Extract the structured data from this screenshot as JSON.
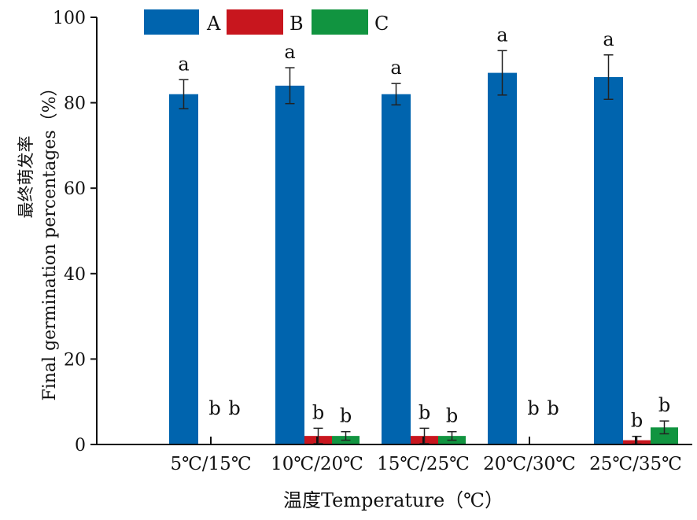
{
  "chart_data": {
    "type": "bar",
    "title": "",
    "xlabel": "温度Temperature（℃）",
    "ylabel_cn": "最终萌发率",
    "ylabel": "Final germination percentages（%）",
    "ylim": [
      0,
      100
    ],
    "yticks": [
      "0",
      "20",
      "40",
      "60",
      "80",
      "100"
    ],
    "categories": [
      "5℃/15℃",
      "10℃/20℃",
      "15℃/25℃",
      "20℃/30℃",
      "25℃/35℃"
    ],
    "legend_position": "top",
    "series": [
      {
        "name": "A",
        "color": "#0064ae",
        "values": [
          82,
          84,
          82,
          87,
          86
        ],
        "errors": [
          3.4,
          4.2,
          2.5,
          5.2,
          5.2
        ],
        "letters": [
          "a",
          "a",
          "a",
          "a",
          "a"
        ]
      },
      {
        "name": "B",
        "color": "#c8161e",
        "values": [
          0,
          2,
          2,
          0,
          1
        ],
        "errors": [
          0,
          1.8,
          1.8,
          0,
          0.9
        ],
        "letters": [
          "b",
          "b",
          "b",
          "b",
          "b"
        ]
      },
      {
        "name": "C",
        "color": "#119440",
        "values": [
          0,
          2,
          2,
          0,
          4
        ],
        "errors": [
          0,
          1,
          1,
          0,
          1.5
        ],
        "letters": [
          "b",
          "b",
          "b",
          "b",
          "b"
        ]
      }
    ]
  }
}
